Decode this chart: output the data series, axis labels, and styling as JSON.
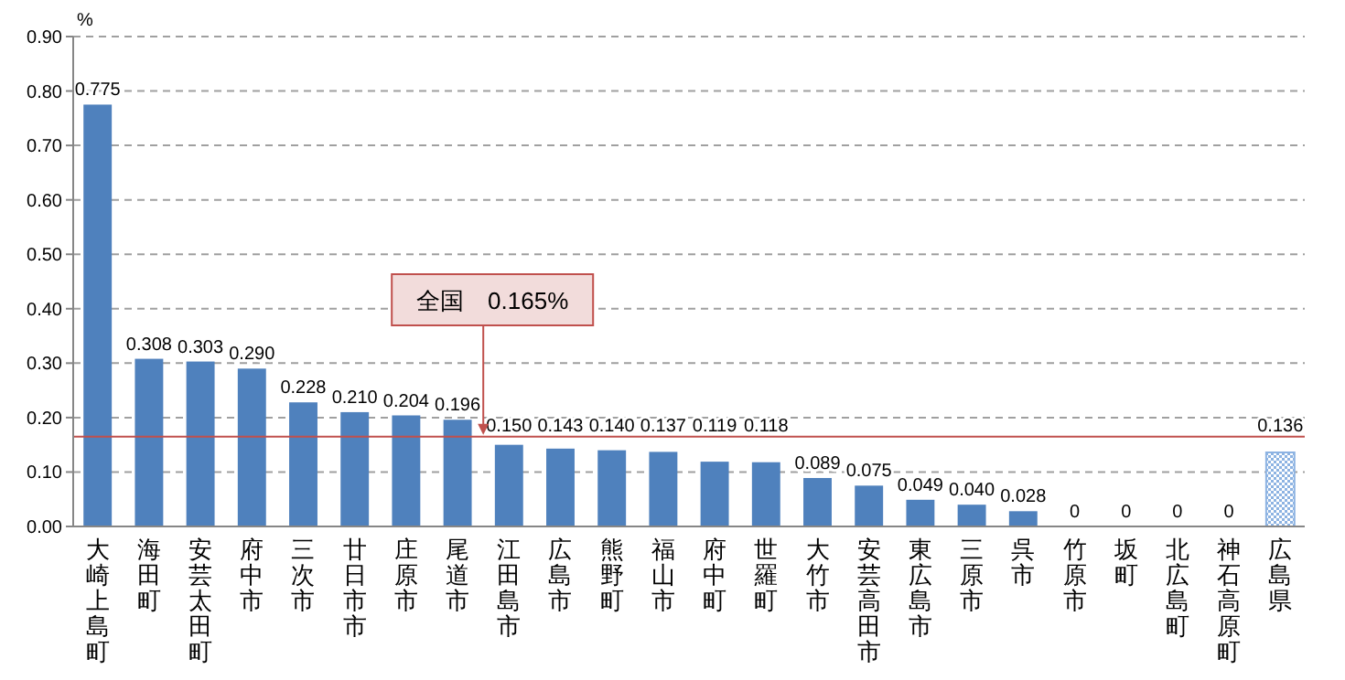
{
  "chart_data": {
    "type": "bar",
    "ylabel": "%",
    "categories": [
      "大崎上島町",
      "海田町",
      "安芸太田町",
      "府中市",
      "三次市",
      "廿日市市",
      "庄原市",
      "尾道市",
      "江田島市",
      "広島市",
      "熊野町",
      "福山市",
      "府中町",
      "世羅町",
      "大竹市",
      "安芸高田市",
      "東広島市",
      "三原市",
      "呉市",
      "竹原市",
      "坂町",
      "北広島町",
      "神石高原町",
      "広島県"
    ],
    "values": [
      0.775,
      0.308,
      0.303,
      0.29,
      0.228,
      0.21,
      0.204,
      0.196,
      0.15,
      0.143,
      0.14,
      0.137,
      0.119,
      0.118,
      0.089,
      0.075,
      0.049,
      0.04,
      0.028,
      0,
      0,
      0,
      0,
      0.136
    ],
    "value_labels": [
      "0.775",
      "0.308",
      "0.303",
      "0.290",
      "0.228",
      "0.210",
      "0.204",
      "0.196",
      "0.150",
      "0.143",
      "0.140",
      "0.137",
      "0.119",
      "0.118",
      "0.089",
      "0.075",
      "0.049",
      "0.040",
      "0.028",
      "0",
      "0",
      "0",
      "0",
      "0.136"
    ],
    "colors": [
      "#4f81bd",
      "#4f81bd",
      "#4f81bd",
      "#4f81bd",
      "#4f81bd",
      "#4f81bd",
      "#4f81bd",
      "#4f81bd",
      "#4f81bd",
      "#4f81bd",
      "#4f81bd",
      "#4f81bd",
      "#4f81bd",
      "#4f81bd",
      "#4f81bd",
      "#4f81bd",
      "#4f81bd",
      "#4f81bd",
      "#4f81bd",
      "#4f81bd",
      "#4f81bd",
      "#4f81bd",
      "#4f81bd",
      "#8db3e2"
    ],
    "ylim": [
      0,
      0.9
    ],
    "yticks": [
      {
        "value": 0,
        "label": "0.00"
      },
      {
        "value": 0.1,
        "label": "0.10"
      },
      {
        "value": 0.2,
        "label": "0.20"
      },
      {
        "value": 0.3,
        "label": "0.30"
      },
      {
        "value": 0.4,
        "label": "0.40"
      },
      {
        "value": 0.5,
        "label": "0.50"
      },
      {
        "value": 0.6,
        "label": "0.60"
      },
      {
        "value": 0.7,
        "label": "0.70"
      },
      {
        "value": 0.8,
        "label": "0.80"
      },
      {
        "value": 0.9,
        "label": "0.90"
      }
    ],
    "grid": "y",
    "ref_lines": [
      {
        "axis": "y",
        "value": 0.165,
        "label": "全国　0.165%",
        "color": "#c0504d"
      }
    ]
  }
}
